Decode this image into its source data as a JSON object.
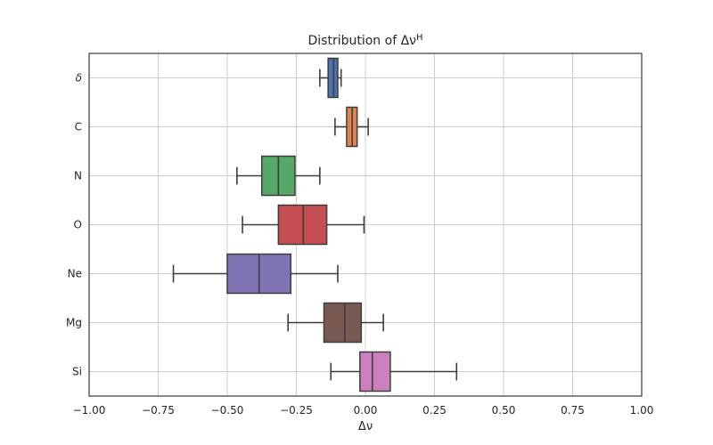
{
  "chart_data": {
    "type": "box",
    "title_main": "Distribution of Δν",
    "title_sup": "H",
    "xlabel": "Δν",
    "ylabel": "",
    "xlim": [
      -1.0,
      1.0
    ],
    "xticks": [
      -1.0,
      -0.75,
      -0.5,
      -0.25,
      0.0,
      0.25,
      0.5,
      0.75,
      1.0
    ],
    "xtick_labels": [
      "−1.00",
      "−0.75",
      "−0.50",
      "−0.25",
      "0.00",
      "0.25",
      "0.50",
      "0.75",
      "1.00"
    ],
    "grid": true,
    "series": [
      {
        "label": "δ",
        "whisker_low": -0.165,
        "q1": -0.135,
        "median": -0.115,
        "q3": -0.1,
        "whisker_high": -0.088,
        "color": "#4c72b0"
      },
      {
        "label": "C",
        "whisker_low": -0.11,
        "q1": -0.068,
        "median": -0.048,
        "q3": -0.03,
        "whisker_high": 0.01,
        "color": "#dd8452"
      },
      {
        "label": "N",
        "whisker_low": -0.465,
        "q1": -0.375,
        "median": -0.315,
        "q3": -0.255,
        "whisker_high": -0.165,
        "color": "#55a868"
      },
      {
        "label": "O",
        "whisker_low": -0.445,
        "q1": -0.315,
        "median": -0.225,
        "q3": -0.14,
        "whisker_high": -0.005,
        "color": "#c44e52"
      },
      {
        "label": "Ne",
        "whisker_low": -0.695,
        "q1": -0.5,
        "median": -0.385,
        "q3": -0.27,
        "whisker_high": -0.1,
        "color": "#8172b3"
      },
      {
        "label": "Mg",
        "whisker_low": -0.28,
        "q1": -0.15,
        "median": -0.075,
        "q3": -0.015,
        "whisker_high": 0.065,
        "color": "#795a53"
      },
      {
        "label": "Si",
        "whisker_low": -0.125,
        "q1": -0.02,
        "median": 0.025,
        "q3": 0.09,
        "whisker_high": 0.33,
        "color": "#cd7fbf"
      }
    ]
  }
}
